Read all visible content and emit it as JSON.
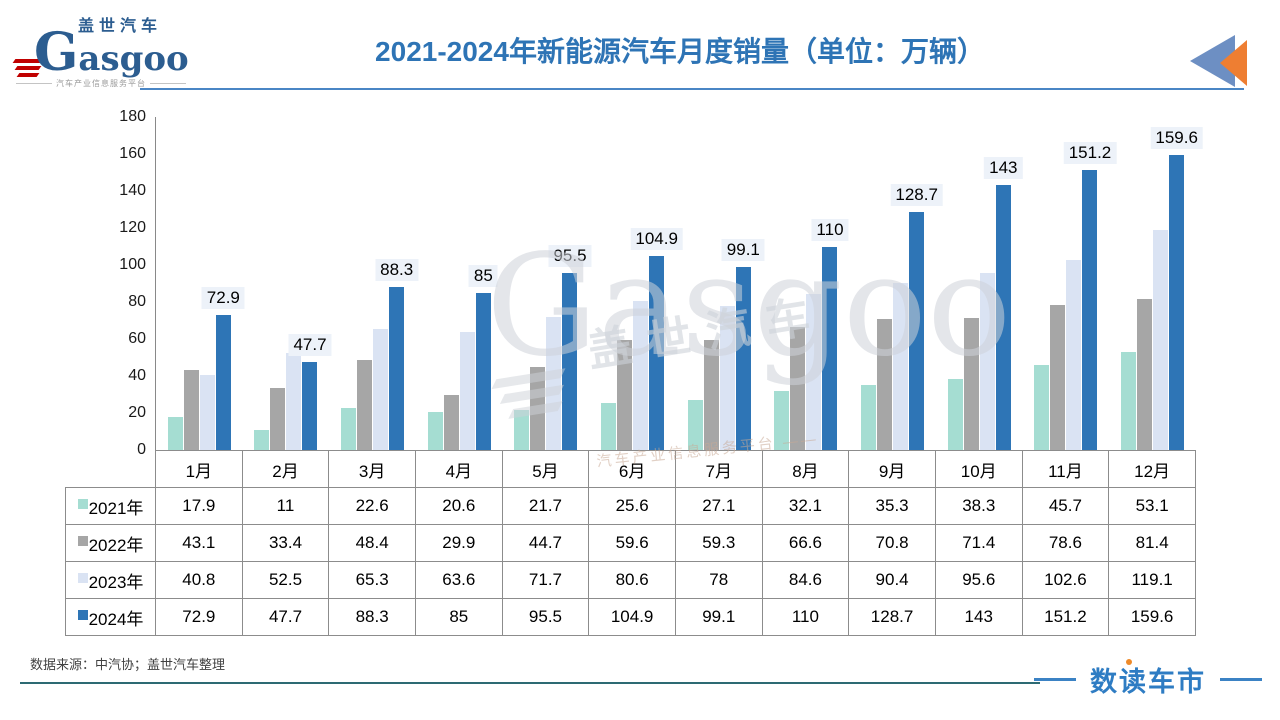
{
  "header": {
    "logo": {
      "brand_cn": "盖世汽车",
      "brand_en": "Gasgoo",
      "tagline": "汽车产业信息服务平台"
    },
    "title": "2021-2024年新能源汽车月度销量（单位：万辆）"
  },
  "chart_data": {
    "type": "bar",
    "title": "2021-2024年新能源汽车月度销量（单位：万辆）",
    "unit": "万辆",
    "categories": [
      "1月",
      "2月",
      "3月",
      "4月",
      "5月",
      "6月",
      "7月",
      "8月",
      "9月",
      "10月",
      "11月",
      "12月"
    ],
    "series": [
      {
        "name": "2021年",
        "color": "#a5ddd2",
        "values": [
          17.9,
          11,
          22.6,
          20.6,
          21.7,
          25.6,
          27.1,
          32.1,
          35.3,
          38.3,
          45.7,
          53.1
        ]
      },
      {
        "name": "2022年",
        "color": "#a6a6a6",
        "values": [
          43.1,
          33.4,
          48.4,
          29.9,
          44.7,
          59.6,
          59.3,
          66.6,
          70.8,
          71.4,
          78.6,
          81.4
        ]
      },
      {
        "name": "2023年",
        "color": "#dae3f3",
        "values": [
          40.8,
          52.5,
          65.3,
          63.6,
          71.7,
          80.6,
          78,
          84.6,
          90.4,
          95.6,
          102.6,
          119.1
        ]
      },
      {
        "name": "2024年",
        "color": "#2e75b6",
        "labeled": true,
        "values": [
          72.9,
          47.7,
          88.3,
          85,
          95.5,
          104.9,
          99.1,
          110,
          128.7,
          143,
          151.2,
          159.6
        ]
      }
    ],
    "y_axis": {
      "min": 0,
      "max": 180,
      "step": 20,
      "ticks": [
        0,
        20,
        40,
        60,
        80,
        100,
        120,
        140,
        160,
        180
      ]
    },
    "grid": false,
    "legend_position": "table-rows",
    "value_labels_series": "2024年"
  },
  "watermark": {
    "brand_cn": "盖世汽车",
    "brand_en": "Gasgoo",
    "tagline": "汽车产业信息服务平台 ——"
  },
  "footer": {
    "source": "数据来源：中汽协；盖世汽车整理",
    "brand": "数读车市"
  }
}
